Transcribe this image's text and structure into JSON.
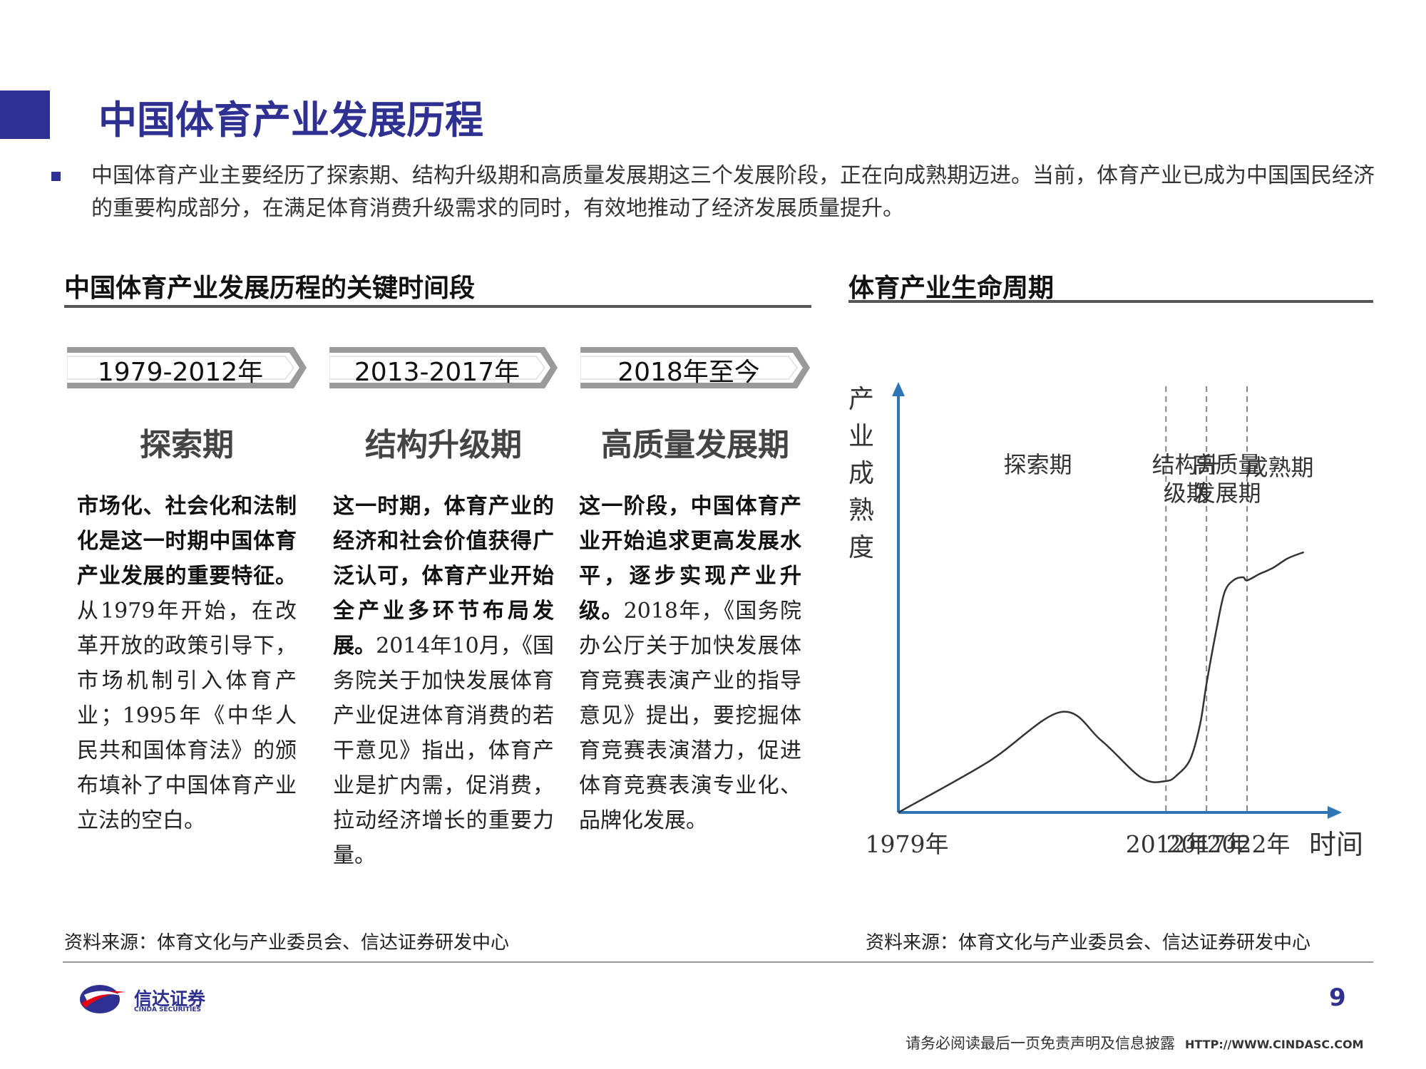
{
  "header": {
    "title": "中国体育产业发展历程"
  },
  "intro": {
    "text": "中国体育产业主要经历了探索期、结构升级期和高质量发展期这三个发展阶段，正在向成熟期迈进。当前，体育产业已成为中国国民经济的重要构成部分，在满足体育消费升级需求的同时，有效地推动了经济发展质量提升。"
  },
  "left_section": {
    "heading": "中国体育产业发展历程的关键时间段",
    "periods": [
      {
        "years": "1979-2012年",
        "stage": "探索期",
        "desc_bold": "市场化、社会化和法制化是这一时期中国体育产业发展的重要特征。",
        "desc_text": "从1979年开始，在改革开放的政策引导下，市场机制引入体育产业；1995年《中华人民共和国体育法》的颁布填补了中国体育产业立法的空白。"
      },
      {
        "years": "2013-2017年",
        "stage": "结构升级期",
        "desc_bold": "这一时期，体育产业的经济和社会价值获得广泛认可，体育产业开始全产业多环节布局发展。",
        "desc_text": "2014年10月，《国务院关于加快发展体育产业促进体育消费的若干意见》指出，体育产业是扩内需，促消费，拉动经济增长的重要力量。"
      },
      {
        "years": "2018年至今",
        "stage": "高质量发展期",
        "desc_bold": "这一阶段，中国体育产业开始追求更高发展水平，逐步实现产业升级。",
        "desc_text": "2018年，《国务院办公厅关于加快发展体育竞赛表演产业的指导意见》提出，要挖掘体育竞赛表演潜力，促进体育竞赛表演专业化、品牌化发展。"
      }
    ],
    "source": "资料来源：体育文化与产业委员会、信达证券研发中心"
  },
  "right_section": {
    "heading": "体育产业生命周期",
    "source": "资料来源：体育文化与产业委员会、信达证券研发中心"
  },
  "chart_data": {
    "type": "line",
    "title": "体育产业生命周期",
    "ylabel": "产业成熟度",
    "xlabel": "时间",
    "x_ticks": [
      "1979年",
      "2012年",
      "2017年",
      "2022年"
    ],
    "phases": [
      "探索期",
      "结构升级期",
      "高质量发展期",
      "成熟期"
    ],
    "phase_labels_lines": [
      [
        "探索期"
      ],
      [
        "结构升",
        "级期"
      ],
      [
        "高质量",
        "发展期"
      ],
      [
        "成熟期"
      ]
    ],
    "x_range": [
      1979,
      2030
    ],
    "y_range": [
      0,
      100
    ],
    "phase_boundaries": [
      2012,
      2017,
      2022
    ],
    "series": [
      {
        "x": [
          1979,
          1990,
          1999,
          2004,
          2009,
          2012,
          2013.4,
          2015,
          2016.2,
          2017,
          2018.2,
          2019.2,
          2020.3,
          2021.5,
          2022,
          2023.5,
          2025.2,
          2027,
          2029
        ],
        "y": [
          0,
          16,
          32,
          23,
          11,
          10,
          12,
          17,
          28,
          41,
          58,
          70,
          74,
          75,
          74,
          76,
          78,
          81,
          83
        ]
      }
    ],
    "grid": false,
    "legend": "none"
  },
  "footer": {
    "logo_name": "信达证券",
    "logo_en": "CINDA SECURITIES",
    "page_number": "9",
    "disclaimer": "请务必阅读最后一页免责声明及信息披露",
    "url": "HTTP://WWW.CINDASC.COM"
  },
  "colors": {
    "brand": "#2e3192",
    "axis": "#2e75b6",
    "curve": "#333333"
  }
}
